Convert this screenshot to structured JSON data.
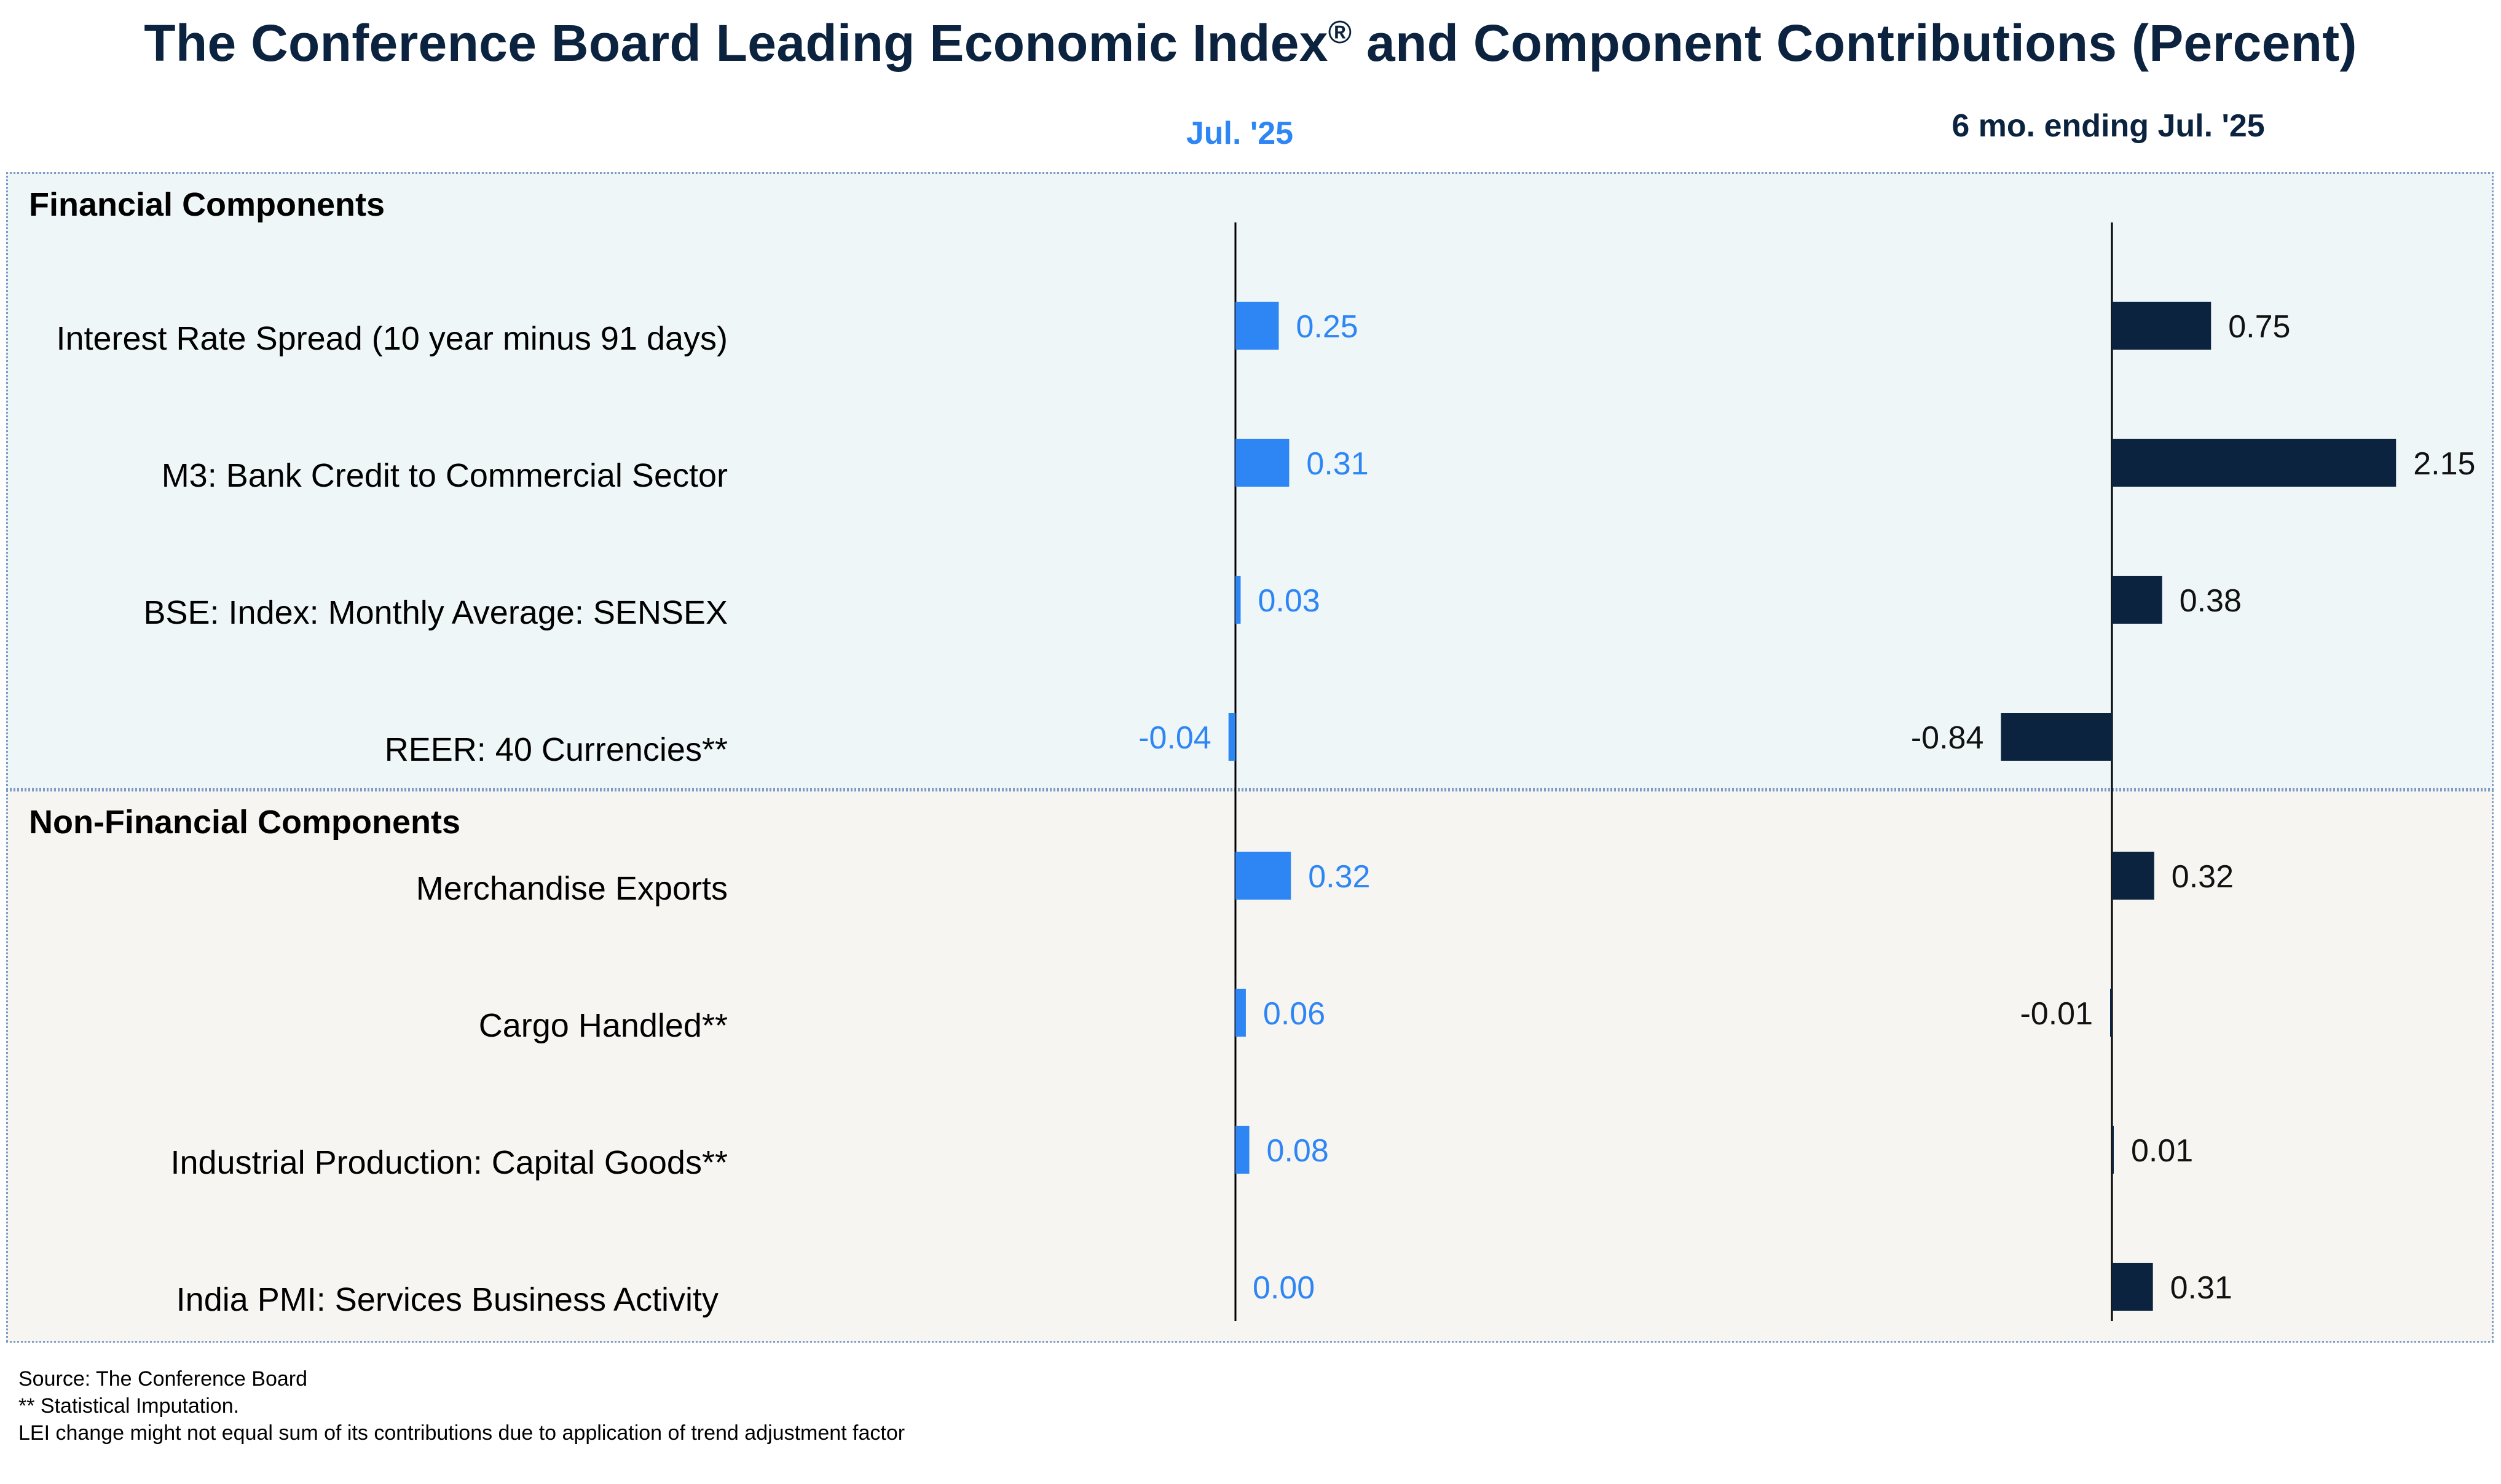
{
  "chart_data": {
    "type": "bar",
    "title": "The Conference Board Leading Economic Index",
    "title_mark": "®",
    "title_suffix": " and Component Contributions (Percent)",
    "series": [
      {
        "name": "Jul. '25",
        "values": [
          0.25,
          0.31,
          0.03,
          -0.04,
          0.32,
          0.06,
          0.08,
          0.0
        ],
        "labels": [
          "0.25",
          "0.31",
          "0.03",
          "-0.04",
          "0.32",
          "0.06",
          "0.08",
          "0.00"
        ],
        "color": "#2e86f5"
      },
      {
        "name": "6 mo. ending Jul. '25",
        "values": [
          0.75,
          2.15,
          0.38,
          -0.84,
          0.32,
          -0.01,
          0.01,
          0.31
        ],
        "labels": [
          "0.75",
          "2.15",
          "0.38",
          "-0.84",
          "0.32",
          "-0.01",
          "0.01",
          "0.31"
        ],
        "color": "#0c2340"
      }
    ],
    "groups": [
      {
        "title": "Financial Components",
        "categories": [
          "Interest Rate Spread (10 year minus 91 days)",
          "M3: Bank Credit to Commercial Sector",
          "BSE: Index: Monthly Average: SENSEX",
          "REER: 40 Currencies**"
        ]
      },
      {
        "title": "Non-Financial Components",
        "categories": [
          "Merchandise Exports",
          "Cargo Handled**",
          "Industrial Production: Capital Goods**",
          "India PMI: Services Business Activity"
        ]
      }
    ]
  },
  "colors": {
    "panel_financial": "#eef6f8",
    "panel_non_financial": "#f6f5f2",
    "title": "#0c2340",
    "accent": "#2e86f5"
  },
  "footnotes": [
    "Source: The Conference Board",
    "**  Statistical Imputation.",
    "LEI change might not equal sum of its contributions due to application of trend adjustment factor"
  ]
}
